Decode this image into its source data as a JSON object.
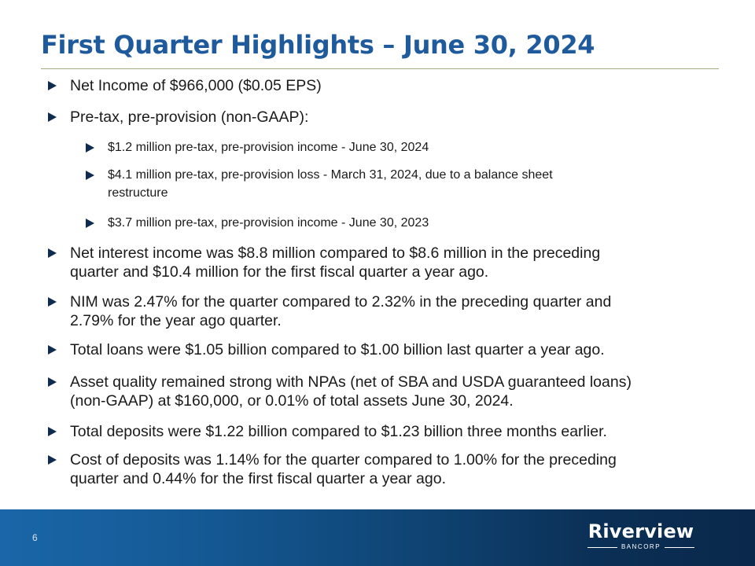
{
  "slide": {
    "title": "First Quarter Highlights – June 30, 2024",
    "page_number": "6"
  },
  "bullets": [
    {
      "level": 1,
      "text": "Net Income of $966,000 ($0.05 EPS)"
    },
    {
      "level": 1,
      "text": "Pre-tax, pre-provision (non-GAAP):"
    },
    {
      "level": 2,
      "text": "$1.2 million pre-tax, pre-provision income - June 30, 2024"
    },
    {
      "level": 2,
      "lines": [
        "$4.1 million pre-tax, pre-provision loss - March 31, 2024, due to a balance sheet",
        "restructure"
      ]
    },
    {
      "level": 2,
      "text": "$3.7 million pre-tax, pre-provision income - June 30, 2023"
    },
    {
      "level": 1,
      "lines": [
        "Net interest income was $8.8 million compared to $8.6 million in the preceding",
        "quarter and $10.4 million for the first fiscal quarter a year ago."
      ]
    },
    {
      "level": 1,
      "lines": [
        "NIM was 2.47% for the quarter compared to 2.32% in the preceding quarter and",
        "2.79% for the year ago quarter."
      ]
    },
    {
      "level": 1,
      "text": "Total loans were $1.05 billion compared to $1.00 billion last quarter a year ago."
    },
    {
      "level": 1,
      "lines": [
        "Asset quality remained strong with NPAs (net of SBA and USDA guaranteed loans)",
        "(non-GAAP) at $160,000, or 0.01% of total assets June 30, 2024."
      ]
    },
    {
      "level": 1,
      "text": "Total deposits were $1.22 billion compared to $1.23 billion three months earlier."
    },
    {
      "level": 1,
      "lines": [
        "Cost of deposits was 1.14% for the quarter compared to 1.00% for the preceding",
        "quarter and 0.44% for the first fiscal quarter a year ago."
      ]
    }
  ],
  "logo": {
    "name": "Riverview",
    "tagline": "BANCORP"
  },
  "colors": {
    "title": "#1f5b9c",
    "bullet_arrow": "#0f2b52",
    "rule": "#a8ab82",
    "footer_start": "#1a66a8",
    "footer_end": "#0a284a"
  }
}
